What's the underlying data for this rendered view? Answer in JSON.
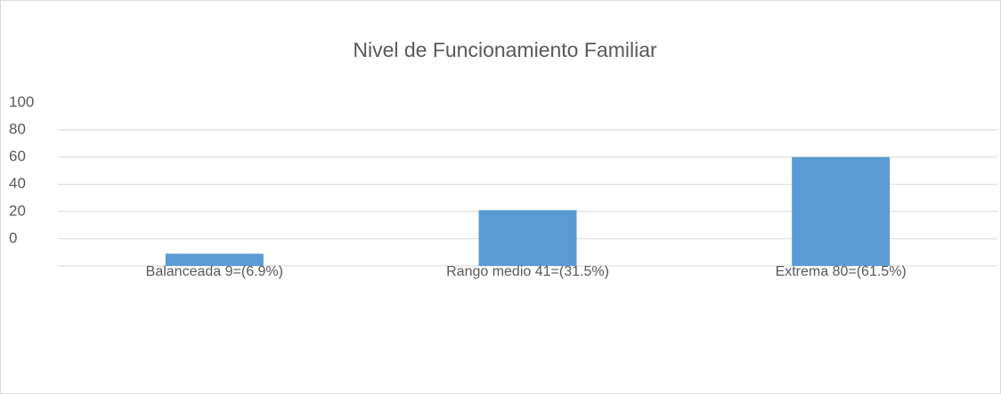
{
  "chart_data": {
    "type": "bar",
    "title": "Nivel  de Funcionamiento Familiar",
    "categories": [
      "Balanceada 9=(6.9%)",
      "Rango medio 41=(31.5%)",
      "Extrema 80=(61.5%)"
    ],
    "values": [
      9,
      41,
      80
    ],
    "color": "#5b9bd5",
    "ylim": [
      0,
      100
    ],
    "yticks": [
      0,
      20,
      40,
      60,
      80,
      100
    ],
    "grid": true
  }
}
